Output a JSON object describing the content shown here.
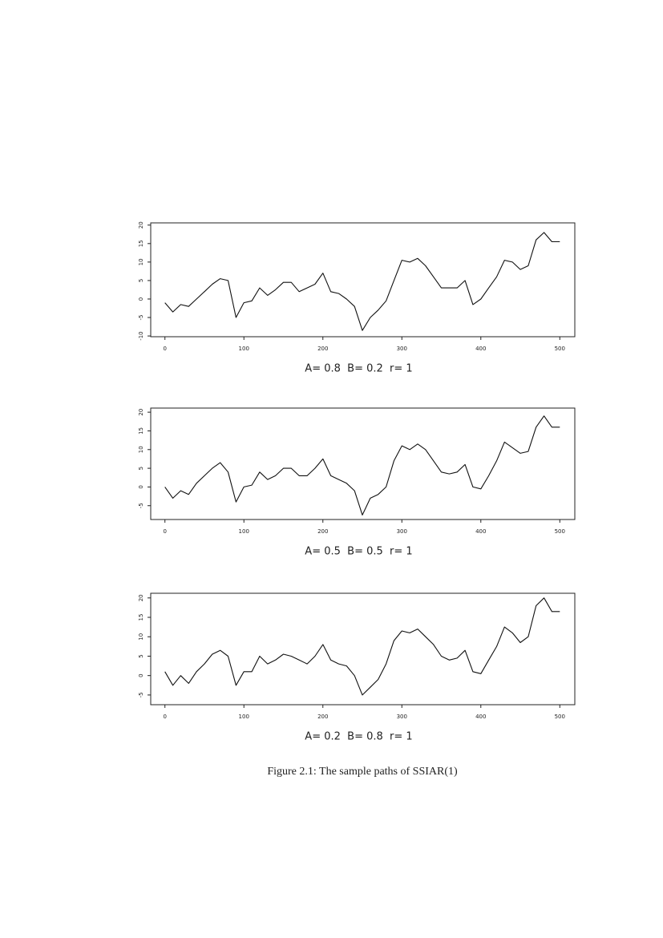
{
  "chart_data": [
    {
      "type": "line",
      "xlabel": "A= 0.8  B= 0.2  r= 1",
      "x": [
        0,
        10,
        20,
        30,
        40,
        50,
        60,
        70,
        80,
        90,
        100,
        110,
        120,
        130,
        140,
        150,
        160,
        170,
        180,
        190,
        200,
        210,
        220,
        230,
        240,
        250,
        260,
        270,
        280,
        290,
        300,
        310,
        320,
        330,
        340,
        350,
        360,
        370,
        380,
        390,
        400,
        410,
        420,
        430,
        440,
        450,
        460,
        470,
        480,
        490,
        500
      ],
      "series": [
        {
          "color": "#111111",
          "values": [
            -1,
            -3.5,
            -1.5,
            -2,
            0,
            2,
            4,
            5.5,
            5,
            -5,
            -1,
            -0.5,
            3,
            1,
            2.5,
            4.5,
            4.5,
            2,
            3,
            4,
            7,
            2,
            1.5,
            0,
            -2,
            -8.5,
            -5,
            -3,
            -0.5,
            5,
            10.5,
            10,
            11,
            9,
            6,
            3,
            3,
            3,
            5,
            -1.5,
            0,
            3,
            6,
            10.5,
            10,
            8,
            9,
            16,
            18,
            15.5,
            15.5
          ]
        }
      ],
      "xlim": [
        -18,
        519
      ],
      "xticks": [
        0,
        100,
        200,
        300,
        400,
        500
      ],
      "ylim": [
        -10.2,
        20.6
      ],
      "yticks": [
        -10,
        -5,
        0,
        5,
        10,
        15,
        20
      ]
    },
    {
      "type": "line",
      "xlabel": "A= 0.5  B= 0.5  r= 1",
      "x": [
        0,
        10,
        20,
        30,
        40,
        50,
        60,
        70,
        80,
        90,
        100,
        110,
        120,
        130,
        140,
        150,
        160,
        170,
        180,
        190,
        200,
        210,
        220,
        230,
        240,
        250,
        260,
        270,
        280,
        290,
        300,
        310,
        320,
        330,
        340,
        350,
        360,
        370,
        380,
        390,
        400,
        410,
        420,
        430,
        440,
        450,
        460,
        470,
        480,
        490,
        500
      ],
      "series": [
        {
          "color": "#111111",
          "values": [
            0,
            -3,
            -1,
            -2,
            1,
            3,
            5,
            6.5,
            4,
            -4,
            0,
            0.5,
            4,
            2,
            3,
            5,
            5,
            3,
            3,
            5,
            7.5,
            3,
            2,
            1,
            -1,
            -7.5,
            -3,
            -2,
            0,
            7,
            11,
            10,
            11.5,
            10,
            7,
            4,
            3.5,
            4,
            6,
            0,
            -0.5,
            3,
            7,
            12,
            10.5,
            9,
            9.5,
            16,
            19,
            16,
            16
          ]
        }
      ],
      "xlim": [
        -18,
        519
      ],
      "xticks": [
        0,
        100,
        200,
        300,
        400,
        500
      ],
      "ylim": [
        -8.7,
        21.1
      ],
      "yticks": [
        -5,
        0,
        5,
        10,
        15,
        20
      ]
    },
    {
      "type": "line",
      "xlabel": "A= 0.2  B= 0.8  r= 1",
      "x": [
        0,
        10,
        20,
        30,
        40,
        50,
        60,
        70,
        80,
        90,
        100,
        110,
        120,
        130,
        140,
        150,
        160,
        170,
        180,
        190,
        200,
        210,
        220,
        230,
        240,
        250,
        260,
        270,
        280,
        290,
        300,
        310,
        320,
        330,
        340,
        350,
        360,
        370,
        380,
        390,
        400,
        410,
        420,
        430,
        440,
        450,
        460,
        470,
        480,
        490,
        500
      ],
      "series": [
        {
          "color": "#111111",
          "values": [
            1,
            -2.5,
            0,
            -2,
            1,
            3,
            5.5,
            6.5,
            5,
            -2.5,
            1,
            1,
            5,
            3,
            4,
            5.5,
            5,
            4,
            3,
            5,
            8,
            4,
            3,
            2.5,
            0,
            -5,
            -3,
            -1,
            3,
            9,
            11.5,
            11,
            12,
            10,
            8,
            5,
            4,
            4.5,
            6.5,
            1,
            0.5,
            4,
            7.5,
            12.5,
            11,
            8.5,
            10,
            18,
            20,
            16.5,
            16.5
          ]
        }
      ],
      "xlim": [
        -18,
        519
      ],
      "xticks": [
        0,
        100,
        200,
        300,
        400,
        500
      ],
      "ylim": [
        -7.5,
        21.2
      ],
      "yticks": [
        -5,
        0,
        5,
        10,
        15,
        20
      ]
    }
  ],
  "caption": "Figure 2.1: The sample paths of SSIAR(1)"
}
